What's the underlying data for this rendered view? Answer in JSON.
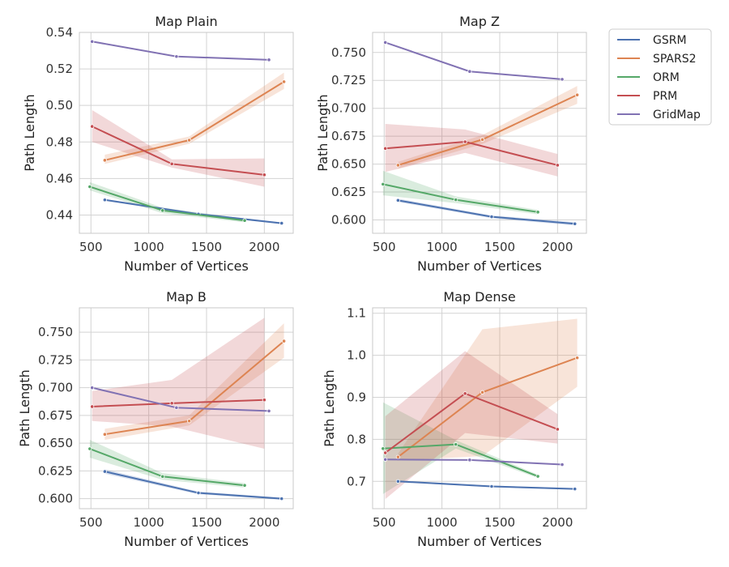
{
  "chart_data": [
    {
      "type": "line",
      "title": "Map Plain",
      "xlabel": "Number of Vertices",
      "ylabel": "Path Length",
      "xlim": [
        400,
        2250
      ],
      "ylim": [
        0.43,
        0.54
      ],
      "xticks": [
        500,
        1000,
        1500,
        2000
      ],
      "yticks": [
        0.44,
        0.46,
        0.48,
        0.5,
        0.52,
        0.54
      ],
      "ytick_labels": [
        "0.44",
        "0.46",
        "0.48",
        "0.50",
        "0.52",
        "0.54"
      ],
      "grid": true,
      "series": [
        {
          "name": "GSRM",
          "x": [
            620,
            1430,
            2150
          ],
          "y": [
            0.4483,
            0.4405,
            0.4355
          ],
          "lo": [
            0.4478,
            0.44,
            0.435
          ],
          "hi": [
            0.4488,
            0.441,
            0.436
          ]
        },
        {
          "name": "SPARS2",
          "x": [
            620,
            1350,
            2170
          ],
          "y": [
            0.47,
            0.481,
            0.513
          ],
          "lo": [
            0.468,
            0.479,
            0.509
          ],
          "hi": [
            0.473,
            0.483,
            0.518
          ]
        },
        {
          "name": "ORM",
          "x": [
            490,
            1120,
            1830
          ],
          "y": [
            0.4555,
            0.4425,
            0.437
          ],
          "lo": [
            0.4535,
            0.441,
            0.436
          ],
          "hi": [
            0.458,
            0.444,
            0.438
          ]
        },
        {
          "name": "PRM",
          "x": [
            510,
            1200,
            2000
          ],
          "y": [
            0.4885,
            0.468,
            0.462
          ],
          "lo": [
            0.48,
            0.466,
            0.4555
          ],
          "hi": [
            0.4975,
            0.4705,
            0.471
          ]
        },
        {
          "name": "GridMap",
          "x": [
            510,
            1240,
            2040
          ],
          "y": [
            0.535,
            0.5268,
            0.525
          ],
          "lo": [
            0.535,
            0.5268,
            0.525
          ],
          "hi": [
            0.535,
            0.5268,
            0.525
          ]
        }
      ]
    },
    {
      "type": "line",
      "title": "Map Z",
      "xlabel": "Number of Vertices",
      "ylabel": "Path Length",
      "xlim": [
        400,
        2250
      ],
      "ylim": [
        0.588,
        0.768
      ],
      "xticks": [
        500,
        1000,
        1500,
        2000
      ],
      "yticks": [
        0.6,
        0.625,
        0.65,
        0.675,
        0.7,
        0.725,
        0.75
      ],
      "ytick_labels": [
        "0.600",
        "0.625",
        "0.650",
        "0.675",
        "0.700",
        "0.725",
        "0.750"
      ],
      "grid": true,
      "series": [
        {
          "name": "GSRM",
          "x": [
            620,
            1430,
            2150
          ],
          "y": [
            0.6175,
            0.6028,
            0.5965
          ],
          "lo": [
            0.616,
            0.6015,
            0.595
          ],
          "hi": [
            0.619,
            0.604,
            0.598
          ]
        },
        {
          "name": "SPARS2",
          "x": [
            620,
            1350,
            2170
          ],
          "y": [
            0.649,
            0.672,
            0.712
          ],
          "lo": [
            0.646,
            0.668,
            0.704
          ],
          "hi": [
            0.652,
            0.676,
            0.72
          ]
        },
        {
          "name": "ORM",
          "x": [
            490,
            1120,
            1830
          ],
          "y": [
            0.632,
            0.618,
            0.607
          ],
          "lo": [
            0.622,
            0.615,
            0.605
          ],
          "hi": [
            0.644,
            0.621,
            0.609
          ]
        },
        {
          "name": "PRM",
          "x": [
            510,
            1200,
            2000
          ],
          "y": [
            0.664,
            0.67,
            0.649
          ],
          "lo": [
            0.643,
            0.66,
            0.639
          ],
          "hi": [
            0.686,
            0.681,
            0.659
          ]
        },
        {
          "name": "GridMap",
          "x": [
            510,
            1240,
            2040
          ],
          "y": [
            0.759,
            0.733,
            0.726
          ],
          "lo": [
            0.759,
            0.733,
            0.726
          ],
          "hi": [
            0.759,
            0.733,
            0.726
          ]
        }
      ]
    },
    {
      "type": "line",
      "title": "Map B",
      "xlabel": "Number of Vertices",
      "ylabel": "Path Length",
      "xlim": [
        400,
        2250
      ],
      "ylim": [
        0.591,
        0.772
      ],
      "xticks": [
        500,
        1000,
        1500,
        2000
      ],
      "yticks": [
        0.6,
        0.625,
        0.65,
        0.675,
        0.7,
        0.725,
        0.75
      ],
      "ytick_labels": [
        "0.600",
        "0.625",
        "0.650",
        "0.675",
        "0.700",
        "0.725",
        "0.750"
      ],
      "grid": true,
      "series": [
        {
          "name": "GSRM",
          "x": [
            620,
            1430,
            2150
          ],
          "y": [
            0.6245,
            0.6052,
            0.6
          ],
          "lo": [
            0.6225,
            0.604,
            0.599
          ],
          "hi": [
            0.6265,
            0.6064,
            0.601
          ]
        },
        {
          "name": "SPARS2",
          "x": [
            620,
            1350,
            2170
          ],
          "y": [
            0.658,
            0.67,
            0.742
          ],
          "lo": [
            0.653,
            0.666,
            0.727
          ],
          "hi": [
            0.663,
            0.675,
            0.758
          ]
        },
        {
          "name": "ORM",
          "x": [
            490,
            1120,
            1830
          ],
          "y": [
            0.645,
            0.62,
            0.612
          ],
          "lo": [
            0.637,
            0.617,
            0.61
          ],
          "hi": [
            0.653,
            0.623,
            0.614
          ]
        },
        {
          "name": "PRM",
          "x": [
            510,
            1200,
            2000
          ],
          "y": [
            0.683,
            0.686,
            0.689
          ],
          "lo": [
            0.67,
            0.665,
            0.645
          ],
          "hi": [
            0.697,
            0.707,
            0.763
          ]
        },
        {
          "name": "GridMap",
          "x": [
            510,
            1240,
            2040
          ],
          "y": [
            0.7,
            0.682,
            0.679
          ],
          "lo": [
            0.7,
            0.682,
            0.679
          ],
          "hi": [
            0.7,
            0.682,
            0.679
          ]
        }
      ]
    },
    {
      "type": "line",
      "title": "Map Dense",
      "xlabel": "Number of Vertices",
      "ylabel": "Path Length",
      "xlim": [
        400,
        2250
      ],
      "ylim": [
        0.635,
        1.113
      ],
      "xticks": [
        500,
        1000,
        1500,
        2000
      ],
      "yticks": [
        0.7,
        0.8,
        0.9,
        1.0,
        1.1
      ],
      "ytick_labels": [
        "0.7",
        "0.8",
        "0.9",
        "1.0",
        "1.1"
      ],
      "grid": true,
      "series": [
        {
          "name": "GSRM",
          "x": [
            620,
            1430,
            2150
          ],
          "y": [
            0.7,
            0.688,
            0.682
          ],
          "lo": [
            0.698,
            0.686,
            0.68
          ],
          "hi": [
            0.702,
            0.69,
            0.684
          ]
        },
        {
          "name": "SPARS2",
          "x": [
            620,
            1350,
            2170
          ],
          "y": [
            0.758,
            0.912,
            0.994
          ],
          "lo": [
            0.75,
            0.76,
            0.925
          ],
          "hi": [
            0.766,
            1.062,
            1.087
          ]
        },
        {
          "name": "ORM",
          "x": [
            490,
            1120,
            1830
          ],
          "y": [
            0.778,
            0.788,
            0.712
          ],
          "lo": [
            0.67,
            0.778,
            0.708
          ],
          "hi": [
            0.888,
            0.798,
            0.716
          ]
        },
        {
          "name": "PRM",
          "x": [
            510,
            1200,
            2000
          ],
          "y": [
            0.768,
            0.909,
            0.824
          ],
          "lo": [
            0.658,
            0.815,
            0.79
          ],
          "hi": [
            0.855,
            1.01,
            0.86
          ]
        },
        {
          "name": "GridMap",
          "x": [
            510,
            1240,
            2040
          ],
          "y": [
            0.752,
            0.751,
            0.74
          ],
          "lo": [
            0.752,
            0.751,
            0.74
          ],
          "hi": [
            0.752,
            0.751,
            0.74
          ]
        }
      ]
    }
  ],
  "legend": {
    "placement": "outside-top-right",
    "entries": [
      "GSRM",
      "SPARS2",
      "ORM",
      "PRM",
      "GridMap"
    ]
  },
  "colors": {
    "GSRM": "#4c72b0",
    "SPARS2": "#dd8452",
    "ORM": "#55a868",
    "PRM": "#c44e52",
    "GridMap": "#8172b3"
  }
}
